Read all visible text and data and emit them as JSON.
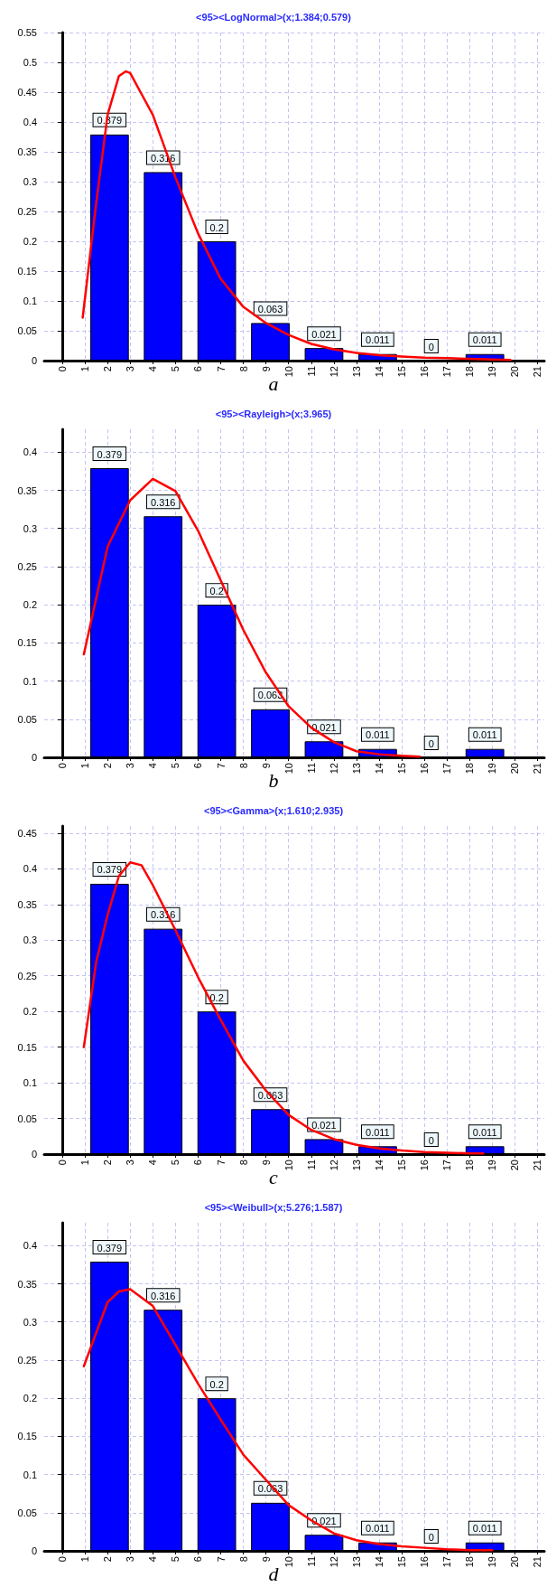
{
  "chart_data": [
    {
      "type": "histogram",
      "title": "<95><LogNormal>(x;1.384;0.579)",
      "annotations": [
        "a"
      ],
      "bins": [
        0.9,
        3.27,
        5.64,
        8.01,
        10.38,
        12.75,
        15.12,
        17.49,
        19.86
      ],
      "values": [
        0.379,
        0.316,
        0.2,
        0.063,
        0.021,
        0.011,
        0,
        0.011
      ],
      "value_labels": [
        "0.379",
        "0.316",
        "0.2",
        "0.063",
        "0.021",
        "0.011",
        "0",
        "0.011"
      ],
      "color": "#0000ff",
      "xlim": [
        -0.8,
        21.3
      ],
      "xticks": [
        0,
        1,
        2,
        3,
        4,
        5,
        6,
        7,
        8,
        9,
        10,
        11,
        12,
        13,
        14,
        15,
        16,
        17,
        18,
        19,
        20,
        21
      ],
      "ylim": [
        0,
        0.55
      ],
      "yticks": [
        0,
        0.05,
        0.1,
        0.15,
        0.2,
        0.25,
        0.3,
        0.35,
        0.4,
        0.45,
        0.5,
        0.55
      ],
      "grid": true,
      "marker": "none",
      "line_style": "solid",
      "series": [
        {
          "type": "line",
          "color": "#ff0000",
          "x": [
            0.9,
            1.3,
            1.5,
            2,
            2.5,
            2.8,
            3,
            3.5,
            4,
            5,
            6,
            7,
            8,
            9,
            10,
            11,
            12,
            13,
            14,
            15,
            16,
            17,
            18,
            19,
            19.8
          ],
          "values": [
            0.072,
            0.201,
            0.265,
            0.412,
            0.477,
            0.485,
            0.482,
            0.447,
            0.412,
            0.307,
            0.213,
            0.137,
            0.09,
            0.063,
            0.043,
            0.028,
            0.019,
            0.013,
            0.009,
            0.007,
            0.005,
            0.004,
            0.003,
            0.002,
            0.001
          ]
        }
      ]
    },
    {
      "type": "histogram",
      "title": "<95><Rayleigh>(x;3.965)",
      "annotations": [
        "b"
      ],
      "bins": [
        0.9,
        3.27,
        5.64,
        8.01,
        10.38,
        12.75,
        15.12,
        17.49,
        19.86
      ],
      "values": [
        0.379,
        0.316,
        0.2,
        0.063,
        0.021,
        0.011,
        0,
        0.011
      ],
      "value_labels": [
        "0.379",
        "0.316",
        "0.2",
        "0.063",
        "0.021",
        "0.011",
        "0",
        "0.011"
      ],
      "color": "#0000ff",
      "xlim": [
        -0.8,
        21.3
      ],
      "xticks": [
        0,
        1,
        2,
        3,
        4,
        5,
        6,
        7,
        8,
        9,
        10,
        11,
        12,
        13,
        14,
        15,
        16,
        17,
        18,
        19,
        20,
        21
      ],
      "ylim": [
        0,
        0.43
      ],
      "yticks": [
        0,
        0.05,
        0.1,
        0.15,
        0.2,
        0.25,
        0.3,
        0.35,
        0.4
      ],
      "grid": true,
      "marker": "none",
      "line_style": "solid",
      "series": [
        {
          "type": "line",
          "color": "#ff0000",
          "x": [
            0.95,
            2,
            3,
            4,
            5,
            6,
            7,
            8,
            9,
            10,
            11,
            12,
            13,
            14,
            15,
            15.8
          ],
          "values": [
            0.135,
            0.276,
            0.337,
            0.365,
            0.349,
            0.297,
            0.232,
            0.167,
            0.111,
            0.067,
            0.039,
            0.02,
            0.008,
            0.004,
            0.002,
            0.001
          ]
        }
      ]
    },
    {
      "type": "histogram",
      "title": "<95><Gamma>(x;1.610;2.935)",
      "annotations": [
        "c"
      ],
      "bins": [
        0.9,
        3.27,
        5.64,
        8.01,
        10.38,
        12.75,
        15.12,
        17.49,
        19.86
      ],
      "values": [
        0.379,
        0.316,
        0.2,
        0.063,
        0.021,
        0.011,
        0,
        0.011
      ],
      "value_labels": [
        "0.379",
        "0.316",
        "0.2",
        "0.063",
        "0.021",
        "0.011",
        "0",
        "0.011"
      ],
      "color": "#0000ff",
      "xlim": [
        -0.8,
        21.3
      ],
      "xticks": [
        0,
        1,
        2,
        3,
        4,
        5,
        6,
        7,
        8,
        9,
        10,
        11,
        12,
        13,
        14,
        15,
        16,
        17,
        18,
        19,
        20,
        21
      ],
      "ylim": [
        0,
        0.46
      ],
      "yticks": [
        0,
        0.05,
        0.1,
        0.15,
        0.2,
        0.25,
        0.3,
        0.35,
        0.4,
        0.45
      ],
      "grid": true,
      "marker": "none",
      "line_style": "solid",
      "series": [
        {
          "type": "line",
          "color": "#ff0000",
          "x": [
            0.95,
            1.5,
            2,
            2.5,
            3,
            3.5,
            4,
            5,
            6,
            7,
            8,
            9,
            10,
            11,
            12,
            13,
            14,
            15,
            16,
            17,
            18,
            18.6
          ],
          "values": [
            0.15,
            0.27,
            0.335,
            0.39,
            0.409,
            0.405,
            0.377,
            0.314,
            0.248,
            0.188,
            0.131,
            0.089,
            0.055,
            0.034,
            0.021,
            0.013,
            0.008,
            0.005,
            0.003,
            0.002,
            0.001,
            0.001
          ]
        }
      ]
    },
    {
      "type": "histogram",
      "title": "<95><Weibull>(x;5.276;1.587)",
      "annotations": [
        "d"
      ],
      "bins": [
        0.9,
        3.27,
        5.64,
        8.01,
        10.38,
        12.75,
        15.12,
        17.49,
        19.86
      ],
      "values": [
        0.379,
        0.316,
        0.2,
        0.063,
        0.021,
        0.011,
        0,
        0.011
      ],
      "value_labels": [
        "0.379",
        "0.316",
        "0.2",
        "0.063",
        "0.021",
        "0.011",
        "0",
        "0.011"
      ],
      "color": "#0000ff",
      "xlim": [
        -0.8,
        21.3
      ],
      "xticks": [
        0,
        1,
        2,
        3,
        4,
        5,
        6,
        7,
        8,
        9,
        10,
        11,
        12,
        13,
        14,
        15,
        16,
        17,
        18,
        19,
        20,
        21
      ],
      "ylim": [
        0,
        0.43
      ],
      "yticks": [
        0,
        0.05,
        0.1,
        0.15,
        0.2,
        0.25,
        0.3,
        0.35,
        0.4
      ],
      "grid": true,
      "marker": "none",
      "line_style": "solid",
      "series": [
        {
          "type": "line",
          "color": "#ff0000",
          "x": [
            0.95,
            2,
            2.5,
            3,
            4,
            5,
            6,
            7,
            8,
            9,
            10,
            11,
            12,
            13,
            14,
            15,
            16,
            17,
            18,
            19
          ],
          "values": [
            0.242,
            0.326,
            0.34,
            0.343,
            0.321,
            0.27,
            0.219,
            0.172,
            0.126,
            0.093,
            0.06,
            0.04,
            0.023,
            0.014,
            0.009,
            0.006,
            0.004,
            0.002,
            0.001,
            0.001
          ]
        }
      ]
    }
  ]
}
